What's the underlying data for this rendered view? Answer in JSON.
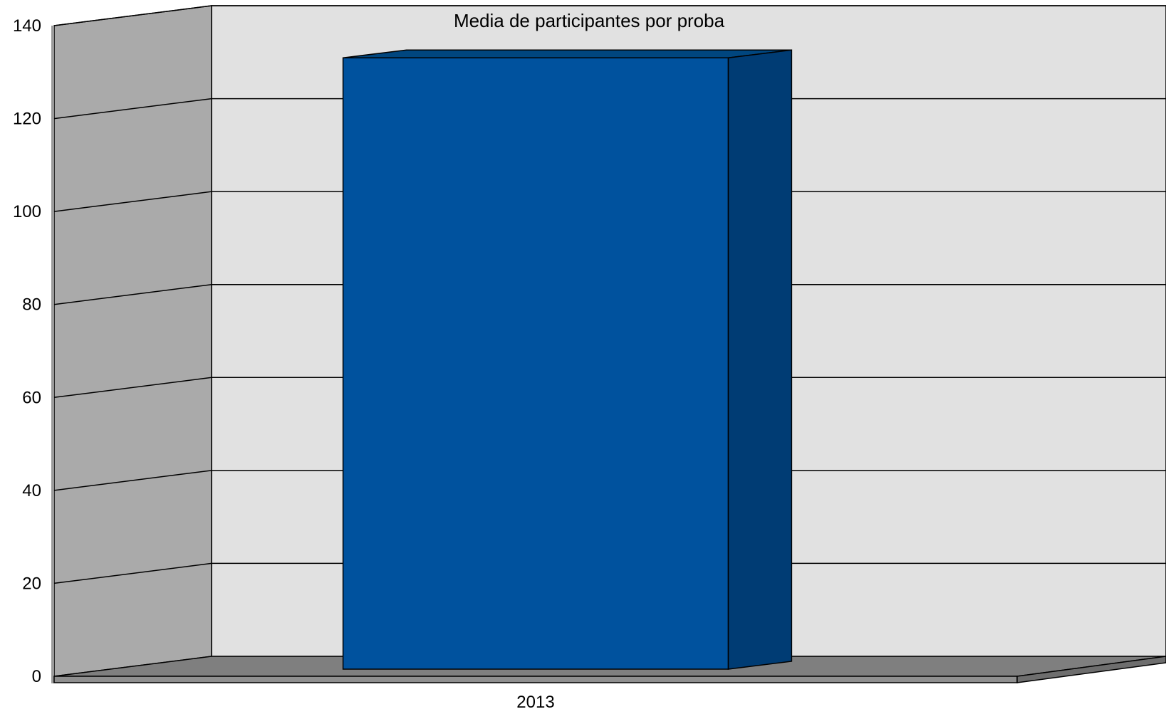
{
  "chart_data": {
    "type": "bar",
    "title": "Media de participantes por proba",
    "xlabel": "",
    "ylabel": "",
    "categories": [
      "2013"
    ],
    "values": [
      133
    ],
    "ylim": [
      0,
      140
    ],
    "yticks": [
      "0",
      "20",
      "40",
      "60",
      "80",
      "100",
      "120",
      "140"
    ],
    "grid": true,
    "style": "3d",
    "colors": {
      "bar_front": "#00529E",
      "bar_side": "#003C74",
      "bar_top": "#00467F",
      "back_wall": "#E1E1E1",
      "side_wall": "#AAAAAA",
      "floor": "#7F7F7F",
      "floor_front": "#8F8F8F"
    }
  }
}
